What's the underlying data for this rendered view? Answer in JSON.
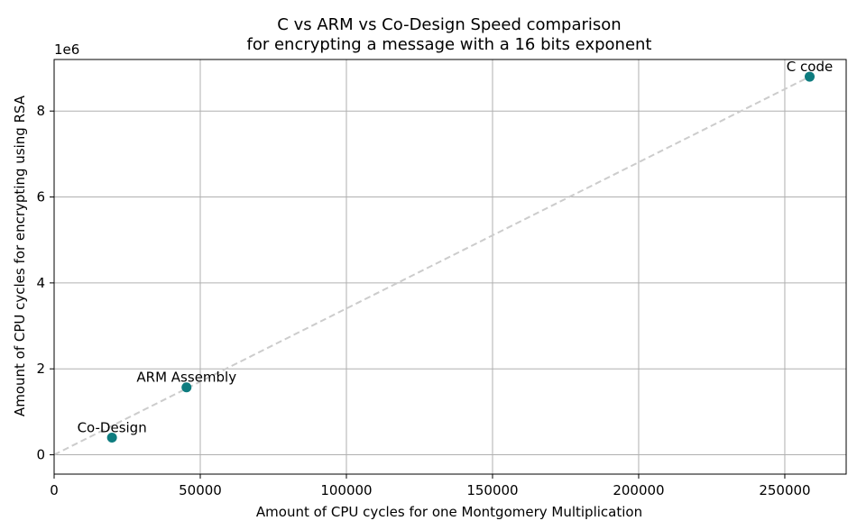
{
  "chart_data": {
    "type": "scatter",
    "title": [
      "C vs ARM vs Co-Design Speed comparison",
      "for encrypting a message with a 16 bits exponent"
    ],
    "xlabel": "Amount of CPU cycles for one Montgomery Multiplication",
    "ylabel": "Amount of CPU cycles for encrypting using RSA",
    "y_offset_label": "1e6",
    "xlim": [
      0,
      271000
    ],
    "ylim": [
      -450000,
      9200000
    ],
    "xticks": [
      0,
      50000,
      100000,
      150000,
      200000,
      250000
    ],
    "xtick_labels": [
      "0",
      "50000",
      "100000",
      "150000",
      "200000",
      "250000"
    ],
    "yticks": [
      0,
      2000000,
      4000000,
      6000000,
      8000000
    ],
    "ytick_labels": [
      "0",
      "2",
      "4",
      "6",
      "8"
    ],
    "grid": true,
    "points": [
      {
        "label": "Co-Design",
        "x": 19800,
        "y": 400000
      },
      {
        "label": "ARM Assembly",
        "x": 45300,
        "y": 1570000
      },
      {
        "label": "C code",
        "x": 258500,
        "y": 8800000
      }
    ],
    "trend_line": {
      "x": [
        0,
        258500
      ],
      "y": [
        0,
        8800000
      ],
      "style": "dashed",
      "color": "#cccccc"
    },
    "point_color": "#0e7c7f"
  }
}
